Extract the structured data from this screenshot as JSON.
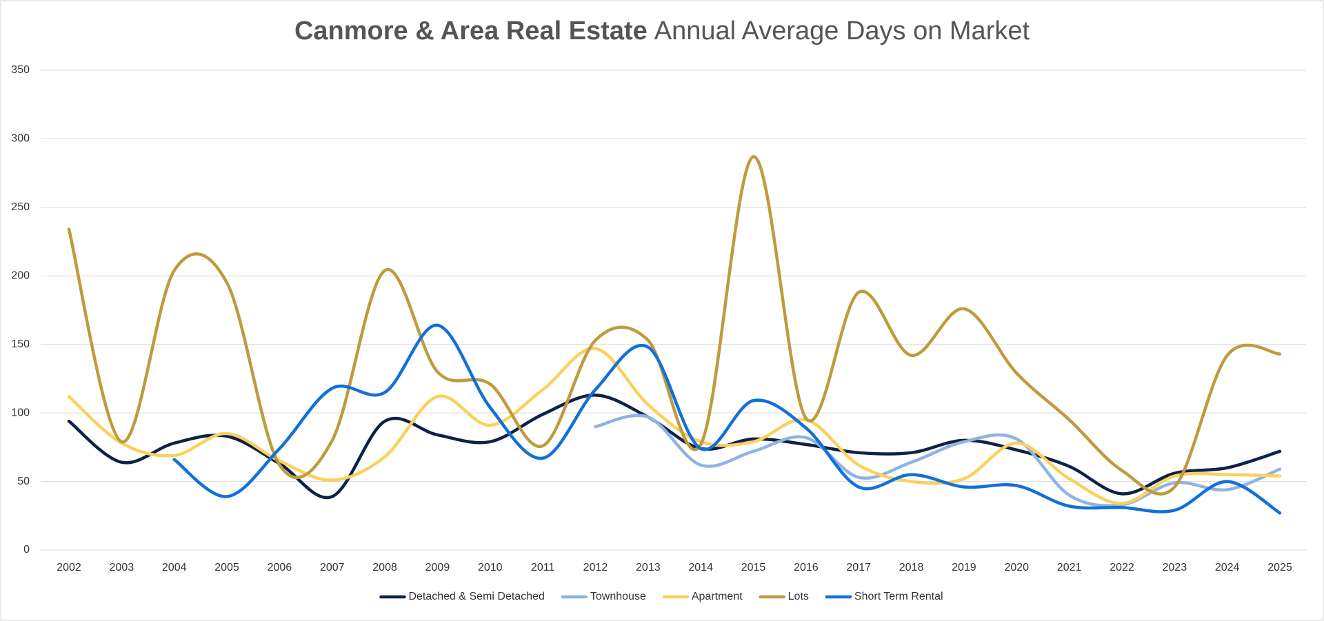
{
  "chart_data": {
    "type": "line",
    "title": "Canmore & Area Real Estate",
    "subtitle": "Annual Average Days on Market",
    "categories": [
      "2002",
      "2003",
      "2004",
      "2005",
      "2006",
      "2007",
      "2008",
      "2009",
      "2010",
      "2011",
      "2012",
      "2013",
      "2014",
      "2015",
      "2016",
      "2017",
      "2018",
      "2019",
      "2020",
      "2021",
      "2022",
      "2023",
      "2024",
      "2025"
    ],
    "series": [
      {
        "name": "Detached & Semi Detached",
        "color": "#0e2146",
        "values": [
          94,
          64,
          78,
          83,
          63,
          39,
          94,
          84,
          79,
          99,
          113,
          97,
          74,
          81,
          77,
          71,
          71,
          80,
          73,
          61,
          41,
          56,
          60,
          72
        ]
      },
      {
        "name": "Townhouse",
        "color": "#8eb4e3",
        "values": [
          null,
          null,
          null,
          null,
          null,
          null,
          null,
          null,
          null,
          null,
          90,
          97,
          62,
          72,
          82,
          53,
          64,
          79,
          81,
          40,
          33,
          49,
          44,
          59
        ]
      },
      {
        "name": "Apartment",
        "color": "#fcd05c",
        "values": [
          112,
          78,
          69,
          85,
          65,
          51,
          68,
          112,
          91,
          117,
          147,
          106,
          79,
          79,
          95,
          62,
          50,
          52,
          78,
          52,
          34,
          54,
          55,
          54
        ]
      },
      {
        "name": "Lots",
        "color": "#bf9b3d",
        "values": [
          234,
          79,
          204,
          195,
          62,
          80,
          204,
          130,
          121,
          76,
          153,
          153,
          77,
          287,
          96,
          188,
          142,
          176,
          129,
          95,
          58,
          46,
          142,
          143
        ]
      },
      {
        "name": "Short Term Rental",
        "color": "#1170d9",
        "values": [
          null,
          null,
          66,
          39,
          74,
          118,
          115,
          164,
          104,
          67,
          117,
          148,
          74,
          109,
          89,
          46,
          55,
          46,
          47,
          32,
          31,
          29,
          50,
          27
        ]
      }
    ],
    "ylim": [
      0,
      350
    ],
    "yticks": [
      0,
      50,
      100,
      150,
      200,
      250,
      300,
      350
    ],
    "grid": true,
    "legend": "bottom"
  }
}
